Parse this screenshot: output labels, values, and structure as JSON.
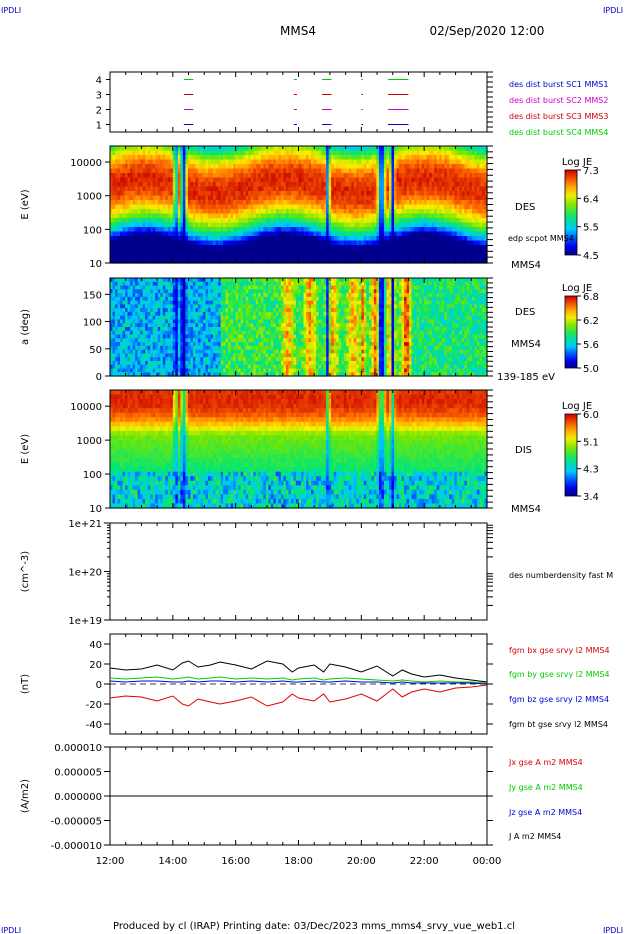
{
  "header": {
    "corner_tl": "IPDLI",
    "corner_tr": "IPDLI",
    "corner_bl": "IPDLI",
    "corner_br": "IPDLI",
    "spacecraft": "MMS4",
    "date": "02/Sep/2020 12:00"
  },
  "footer": {
    "text": "Produced by cl (IRAP)   Printing date: 03/Dec/2023   mms_mms4_srvy_vue_web1.cl"
  },
  "colors": {
    "mms1": "#0000cc",
    "mms2": "#cc00cc",
    "mms3": "#cc0000",
    "mms4": "#00cc00",
    "bx": "#dd0000",
    "by": "#00cc00",
    "bz": "#0000dd",
    "bt": "#000000"
  },
  "chart_data": [
    {
      "type": "scatter",
      "panel": "burst",
      "ylim": [
        0.5,
        4.5
      ],
      "yticks": [
        "1",
        "2",
        "3",
        "4"
      ],
      "legend": [
        "des dist burst SC1 MMS1",
        "des dist burst SC2 MMS2",
        "des dist burst SC3 MMS3",
        "des dist burst SC4 MMS4"
      ],
      "intervals_hours": [
        [
          14.35,
          14.65
        ],
        [
          17.85,
          17.95
        ],
        [
          18.75,
          19.05
        ],
        [
          20.0,
          20.05
        ],
        [
          20.85,
          21.5
        ]
      ]
    },
    {
      "type": "heatmap",
      "panel": "des-energy",
      "ylabel": "E (eV)",
      "yscale": "log",
      "ylim": [
        10,
        30000
      ],
      "yticks": [
        "10",
        "100",
        "1000",
        "10000"
      ],
      "colorbar": {
        "title": "Log JE",
        "ticks": [
          "7.3",
          "6.4",
          "5.5",
          "4.5"
        ],
        "range": [
          4.5,
          7.3
        ]
      },
      "right_label": "DES",
      "right_overlay": "edp scpot MMS4",
      "bottom_right_label": "MMS4"
    },
    {
      "type": "heatmap",
      "panel": "des-pitch",
      "ylabel": "a (deg)",
      "ylim": [
        0,
        180
      ],
      "yticks": [
        "0",
        "50",
        "100",
        "150"
      ],
      "colorbar": {
        "title": "Log JE",
        "ticks": [
          "6.8",
          "6.2",
          "5.6",
          "5.0"
        ],
        "range": [
          5.0,
          6.8
        ]
      },
      "right_label": "DES",
      "right_sub": "MMS4",
      "bottom_right_label": "139-185 eV"
    },
    {
      "type": "heatmap",
      "panel": "dis-energy",
      "ylabel": "E (eV)",
      "yscale": "log",
      "ylim": [
        10,
        30000
      ],
      "yticks": [
        "10",
        "100",
        "1000",
        "10000"
      ],
      "colorbar": {
        "title": "Log JE",
        "ticks": [
          "6.0",
          "5.1",
          "4.3",
          "3.4"
        ],
        "range": [
          3.4,
          6.0
        ]
      },
      "right_label": "DIS",
      "bottom_right_label": "MMS4"
    },
    {
      "type": "line",
      "panel": "density",
      "ylabel": "(cm^-3)",
      "yscale": "log",
      "ylim": [
        1e+19,
        1e+21
      ],
      "yticks": [
        "1e+19",
        "1e+20",
        "1e+21"
      ],
      "legend": [
        "des numberdensity fast M"
      ],
      "series": []
    },
    {
      "type": "line",
      "panel": "magnetic-field",
      "ylabel": "(nT)",
      "ylim": [
        -50,
        50
      ],
      "yticks": [
        "-40",
        "-20",
        "0",
        "20",
        "40"
      ],
      "legend": [
        "fgm bx gse srvy l2 MMS4",
        "fgm by gse srvy l2 MMS4",
        "fgm bz gse srvy l2 MMS4",
        "fgm bt gse srvy l2 MMS4"
      ],
      "x_hours": [
        12.0,
        12.5,
        13.0,
        13.5,
        14.0,
        14.3,
        14.5,
        14.8,
        15.2,
        15.5,
        16.0,
        16.5,
        17.0,
        17.5,
        17.8,
        18.0,
        18.5,
        18.8,
        19.0,
        19.5,
        20.0,
        20.5,
        21.0,
        21.3,
        21.6,
        22.0,
        22.5,
        23.0,
        23.5,
        24.0
      ],
      "series": [
        {
          "name": "fgm bx gse srvy l2 MMS4",
          "values": [
            -14,
            -12,
            -13,
            -17,
            -12,
            -20,
            -22,
            -15,
            -18,
            -20,
            -17,
            -13,
            -22,
            -18,
            -10,
            -14,
            -17,
            -10,
            -18,
            -15,
            -10,
            -17,
            -5,
            -13,
            -8,
            -5,
            -8,
            -4,
            -3,
            -1
          ]
        },
        {
          "name": "fgm by gse srvy l2 MMS4",
          "values": [
            6,
            5,
            6,
            7,
            5,
            6,
            7,
            5,
            6,
            7,
            5,
            6,
            5,
            6,
            4,
            5,
            6,
            4,
            5,
            6,
            5,
            4,
            3,
            4,
            3,
            2,
            3,
            2,
            2,
            1
          ]
        },
        {
          "name": "fgm bz gse srvy l2 MMS4",
          "values": [
            3,
            2,
            3,
            3,
            2,
            2,
            3,
            2,
            3,
            3,
            2,
            3,
            2,
            3,
            2,
            2,
            3,
            2,
            2,
            3,
            2,
            2,
            1,
            2,
            1,
            1,
            1,
            1,
            1,
            0
          ]
        },
        {
          "name": "fgm bt gse srvy l2 MMS4",
          "values": [
            16,
            14,
            15,
            19,
            14,
            21,
            23,
            17,
            19,
            22,
            19,
            15,
            23,
            20,
            12,
            16,
            19,
            12,
            20,
            17,
            12,
            18,
            8,
            14,
            10,
            7,
            9,
            6,
            4,
            2
          ]
        }
      ]
    },
    {
      "type": "line",
      "panel": "current-density",
      "ylabel": "(A/m2)",
      "ylim": [
        -1e-05,
        1e-05
      ],
      "yticks": [
        "-0.000010",
        "-0.000005",
        "0.000000",
        "0.000005",
        "0.000010"
      ],
      "legend": [
        "Jx gse A m2 MMS4",
        "Jy gse A m2 MMS4",
        "Jz gse A m2 MMS4",
        "J A m2 MMS4"
      ],
      "x_hours": [
        12.0,
        24.0
      ],
      "series": [
        {
          "name": "J A m2 MMS4",
          "values": [
            0,
            0
          ]
        }
      ]
    }
  ],
  "time_axis": {
    "xlim_hours": [
      12,
      24
    ],
    "ticks": [
      "12:00",
      "14:00",
      "16:00",
      "18:00",
      "20:00",
      "22:00",
      "00:00"
    ]
  }
}
